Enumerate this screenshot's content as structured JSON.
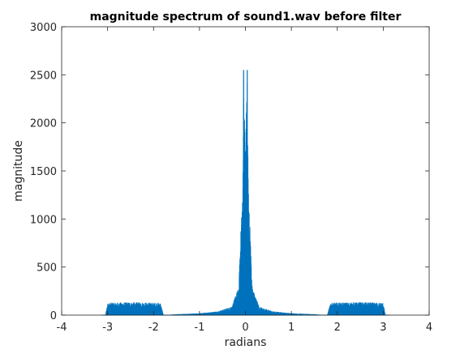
{
  "chart_data": {
    "type": "line",
    "title": "magnitude spectrum of sound1.wav before filter",
    "xlabel": "radians",
    "ylabel": "magnitude",
    "xlim": [
      -4,
      4
    ],
    "ylim": [
      0,
      3000
    ],
    "xticks": [
      -4,
      -3,
      -2,
      -1,
      0,
      1,
      2,
      3,
      4
    ],
    "xtick_labels": [
      "-4",
      "-3",
      "-2",
      "-1",
      "0",
      "1",
      "2",
      "3",
      "4"
    ],
    "yticks": [
      0,
      500,
      1000,
      1500,
      2000,
      2500,
      3000
    ],
    "ytick_labels": [
      "0",
      "500",
      "1000",
      "1500",
      "2000",
      "2500",
      "3000"
    ],
    "grid": false,
    "series_color": "#0072BD",
    "series": [
      {
        "x_range": [
          -3.14159,
          3.14159
        ],
        "envelope": [
          {
            "x": -3.14,
            "y": 0
          },
          {
            "x": -3.05,
            "y": 0
          },
          {
            "x": -3.0,
            "y": 130
          },
          {
            "x": -2.5,
            "y": 135
          },
          {
            "x": -1.85,
            "y": 130
          },
          {
            "x": -1.78,
            "y": 0
          },
          {
            "x": -1.5,
            "y": 10
          },
          {
            "x": -1.0,
            "y": 20
          },
          {
            "x": -0.6,
            "y": 40
          },
          {
            "x": -0.3,
            "y": 90
          },
          {
            "x": -0.15,
            "y": 300
          },
          {
            "x": -0.08,
            "y": 1200
          },
          {
            "x": -0.04,
            "y": 2550
          },
          {
            "x": 0.0,
            "y": 1760
          },
          {
            "x": 0.04,
            "y": 2550
          },
          {
            "x": 0.08,
            "y": 1200
          },
          {
            "x": 0.15,
            "y": 300
          },
          {
            "x": 0.3,
            "y": 90
          },
          {
            "x": 0.6,
            "y": 40
          },
          {
            "x": 1.0,
            "y": 20
          },
          {
            "x": 1.5,
            "y": 10
          },
          {
            "x": 1.78,
            "y": 0
          },
          {
            "x": 1.85,
            "y": 130
          },
          {
            "x": 2.5,
            "y": 135
          },
          {
            "x": 3.0,
            "y": 130
          },
          {
            "x": 3.05,
            "y": 0
          },
          {
            "x": 3.14,
            "y": 0
          }
        ]
      }
    ]
  }
}
